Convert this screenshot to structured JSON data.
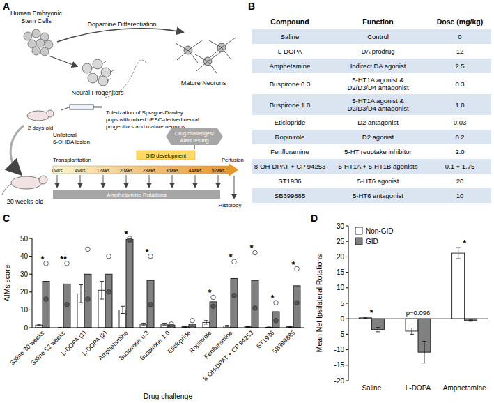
{
  "panel_labels": [
    "A",
    "B",
    "C",
    "D"
  ],
  "diagram": {
    "stem_cells": [
      "Human Embryonic",
      "Stem Cells"
    ],
    "differentiation": "Dopamine Differentiation",
    "progenitors": "Neural Progenitors",
    "neurons": "Mature Neurons",
    "tolerization": [
      "Tolerization of Sprague-Dawley",
      "pups with mixed hESC-derived neural",
      "progenitors and mature neurons."
    ],
    "pup_age": "2 days old",
    "adult_age": "20 weeks old",
    "lesion": [
      "Unilateral",
      "6-OHDA lesion"
    ],
    "transplantation": "Transplantation",
    "drug_challenges": [
      "Drug challenges/",
      "AIMs testing"
    ],
    "gid": "GID development",
    "perfusion": "Perfusion",
    "histology": "Histology",
    "timeline": [
      "0wks",
      "4wks",
      "12wks",
      "20wks",
      "28wks",
      "36wks",
      "44wks",
      "52wks"
    ],
    "rotations": "Amphetamine Rotations"
  },
  "table": {
    "header": [
      "Compound",
      "Function",
      "Dose (mg/kg)"
    ],
    "rows": [
      [
        "Saline",
        "Control",
        "0"
      ],
      [
        "L-DOPA",
        "DA prodrug",
        "12"
      ],
      [
        "Amphetamine",
        "Indirect DA agonist",
        "2.5"
      ],
      [
        "Buspirone 0.3",
        "5-HT1A agonist & D2/D3/D4 antagonist",
        "0.3"
      ],
      [
        "Buspirone 1.0",
        "5-HT1A agonist & D2/D3/D4 antagonist",
        "1.0"
      ],
      [
        "Eticlopride",
        "D2 antagonist",
        "0.03"
      ],
      [
        "Ropinirole",
        "D2 agonist",
        "0.2"
      ],
      [
        "Fenfluramine",
        "5-HT reuptake inhibitor",
        "2.0"
      ],
      [
        "8-OH-DPAT + CP 94253",
        "5-HT1A + 5-HT1B agonists",
        "0.1 + 1.75"
      ],
      [
        "ST1936",
        "5-HT6 agonist",
        "20"
      ],
      [
        "SB399885",
        "5-HT6 antagonist",
        "10"
      ]
    ]
  },
  "chart_data": [
    {
      "type": "bar",
      "x_label": "Drug challenge",
      "y_label": "AIMs score",
      "categories": [
        "Saline 30 weeks",
        "Saline 52 weeks",
        "L-DOPA (1)",
        "L-DOPA (2)",
        "Amphetamine",
        "Buspirone 0.3",
        "Buspirone 1.0",
        "Eticlopride",
        "Ropinirole",
        "Fenfluramine",
        "8-OH-DPAT + CP 94253",
        "ST1936",
        "SB399885"
      ],
      "series": [
        {
          "name": "Non-GID",
          "color": "#ffffff",
          "values": [
            1.5,
            0,
            19,
            21,
            10,
            2,
            2,
            0.5,
            3,
            1,
            0.5,
            0.2,
            0.5
          ],
          "errors": [
            0.5,
            0.2,
            5,
            5,
            2,
            0.5,
            0.5,
            0.3,
            1,
            0.3,
            0.3,
            0.2,
            0.3
          ]
        },
        {
          "name": "GID",
          "color": "#808080",
          "values": [
            26,
            24.5,
            30,
            30,
            49.5,
            26.5,
            1.5,
            2,
            14.5,
            27.5,
            26.5,
            9,
            23.5
          ],
          "points": [
            [
              36,
              16
            ],
            [
              36,
              13
            ],
            [
              44,
              16
            ],
            [
              40,
              20
            ],
            [
              50,
              49
            ],
            [
              40,
              13
            ],
            [
              2,
              1
            ],
            [
              4,
              0
            ],
            [
              17,
              12
            ],
            [
              37,
              18
            ],
            [
              42,
              11
            ],
            [
              14,
              4
            ],
            [
              33,
              14
            ]
          ]
        }
      ],
      "significance": [
        "*",
        "**",
        null,
        null,
        "*",
        "*",
        null,
        null,
        "*",
        "*",
        "*",
        "*",
        "*"
      ],
      "ylim": [
        0,
        50
      ],
      "yticks": [
        0,
        10,
        20,
        30,
        40,
        50
      ]
    },
    {
      "type": "bar",
      "y_label": "Mean Net Ipsilateral Rotations",
      "categories": [
        "Saline",
        "L-DOPA",
        "Amphetamine"
      ],
      "series": [
        {
          "name": "Non-GID",
          "color": "#ffffff",
          "values": [
            0.3,
            -4,
            21.2
          ],
          "errors": [
            0.2,
            1,
            1.8
          ]
        },
        {
          "name": "GID",
          "color": "#808080",
          "values": [
            -3.5,
            -10.8,
            -0.6
          ],
          "errors": [
            0.7,
            3.5,
            0.2
          ]
        }
      ],
      "significance": [
        "*",
        "p=0.096",
        "*"
      ],
      "legend": "top-left",
      "ylim": [
        -20,
        30
      ],
      "yticks": [
        -20,
        -15,
        -10,
        -5,
        0,
        5,
        10,
        15,
        20,
        25,
        30
      ]
    }
  ]
}
